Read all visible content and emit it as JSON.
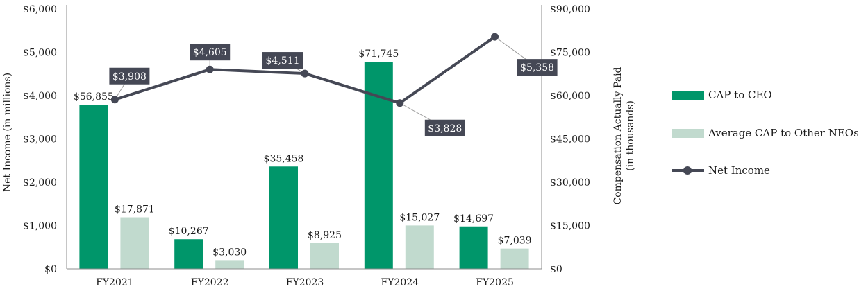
{
  "chart_data": {
    "type": "bar",
    "categories": [
      "FY2021",
      "FY2022",
      "FY2023",
      "FY2024",
      "FY2025"
    ],
    "series": [
      {
        "name": "CAP to CEO",
        "axis": "right",
        "color": "#00966A",
        "values": [
          56855,
          10267,
          35458,
          71745,
          14697
        ],
        "labels": [
          "$56,855",
          "$10,267",
          "$35,458",
          "$71,745",
          "$14,697"
        ]
      },
      {
        "name": "Average CAP to Other NEOs",
        "axis": "right",
        "color": "#C1DACE",
        "values": [
          17871,
          3030,
          8925,
          15027,
          7039
        ],
        "labels": [
          "$17,871",
          "$3,030",
          "$8,925",
          "$15,027",
          "$7,039"
        ]
      },
      {
        "name": "Net Income",
        "type": "line",
        "axis": "left",
        "color": "#454855",
        "values": [
          3908,
          4605,
          4511,
          3828,
          5358
        ],
        "labels": [
          "$3,908",
          "$4,605",
          "$4,511",
          "$3,828",
          "$5,358"
        ]
      }
    ],
    "left_axis": {
      "title": "Net Income (in millions)",
      "ylim": [
        0,
        6000
      ],
      "ticks": [
        "$0",
        "$1,000",
        "$2,000",
        "$3,000",
        "$4,000",
        "$5,000",
        "$6,000"
      ]
    },
    "right_axis": {
      "title_lines": [
        "Compensation Actually Paid",
        "(in thousands)"
      ],
      "ylim": [
        0,
        90000
      ],
      "ticks": [
        "$0",
        "$15,000",
        "$30,000",
        "$45,000",
        "$60,000",
        "$75,000",
        "$90,000"
      ]
    },
    "grid": false,
    "legend_position": "right"
  }
}
